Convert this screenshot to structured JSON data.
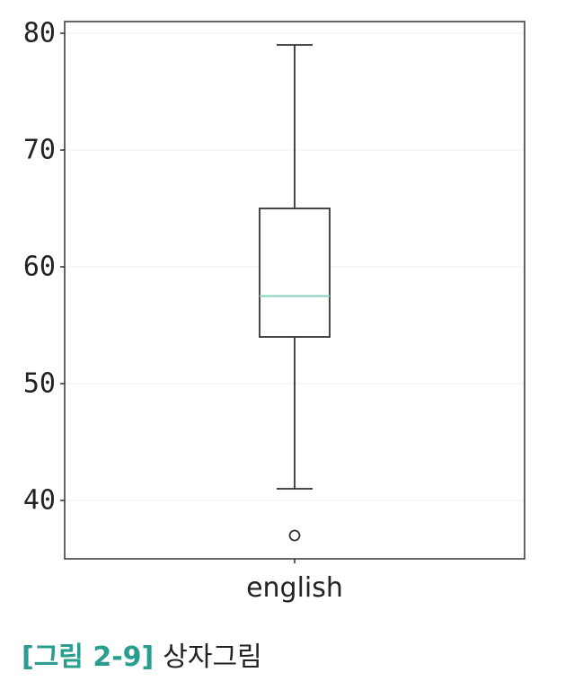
{
  "chart_data": {
    "type": "box",
    "categories": [
      "english"
    ],
    "ylim": [
      35,
      81
    ],
    "yticks": [
      40,
      50,
      60,
      70,
      80
    ],
    "grid": true,
    "boxes": [
      {
        "category": "english",
        "whisker_low": 41,
        "q1": 54,
        "median": 57.5,
        "q3": 65,
        "whisker_high": 79,
        "outliers": [
          37
        ]
      }
    ],
    "colors": {
      "box": "#333333",
      "median": "#8fd3c4",
      "grid": "#eeeeee",
      "frame": "#333333"
    }
  },
  "caption": {
    "figure_number": "[그림 2-9]",
    "title": "상자그림"
  }
}
